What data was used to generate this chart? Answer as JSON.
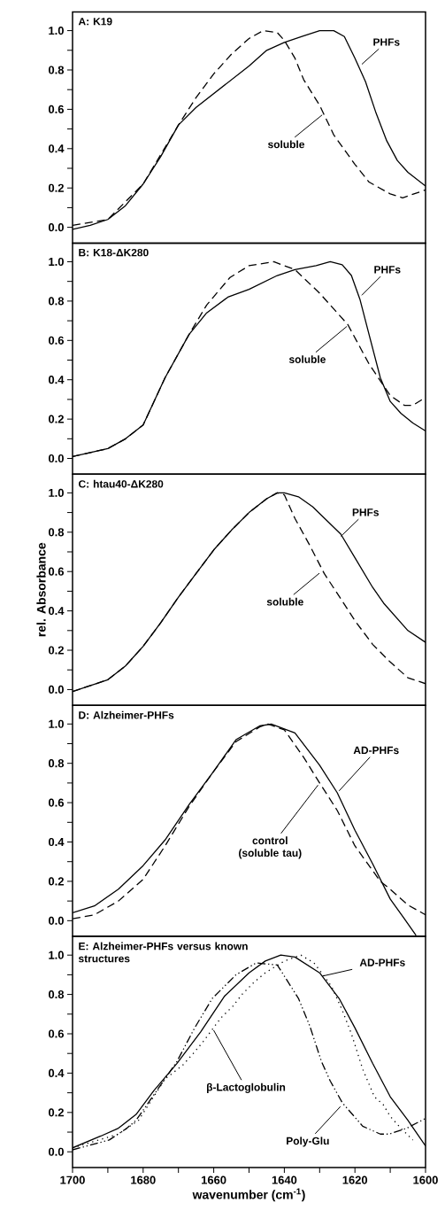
{
  "chart_data": [
    {
      "type": "line",
      "title": "A: K19",
      "xlim": [
        1700,
        1600
      ],
      "ylim": [
        -0.08,
        1.095
      ],
      "tick_labels": "y",
      "yticks": [
        {
          "value": 0,
          "label": "0.0"
        },
        {
          "value": 0.1,
          "label": null
        },
        0.2,
        {
          "value": 0.3,
          "label": null
        },
        0.4,
        {
          "value": 0.5,
          "label": null
        },
        0.6,
        {
          "value": 0.7,
          "label": null
        },
        0.8,
        {
          "value": 0.9,
          "label": null
        },
        {
          "value": 1,
          "label": "1.0"
        }
      ],
      "series": [
        {
          "color": "#000000",
          "line_style": "solid",
          "x": [
            1700,
            1695,
            1690,
            1685,
            1680,
            1675,
            1670,
            1665,
            1660,
            1655,
            1650,
            1645,
            1640,
            1635,
            1630,
            1626,
            1623,
            1620,
            1617,
            1614,
            1611,
            1608,
            1605,
            1600
          ],
          "values": [
            -0.01,
            0.01,
            0.04,
            0.11,
            0.22,
            0.36,
            0.52,
            0.61,
            0.68,
            0.75,
            0.82,
            0.9,
            0.94,
            0.97,
            1.0,
            1.0,
            0.97,
            0.86,
            0.74,
            0.58,
            0.44,
            0.34,
            0.28,
            0.21
          ]
        },
        {
          "color": "#000000",
          "line_style": "dashed",
          "x": [
            1700,
            1690,
            1680,
            1670,
            1665,
            1660,
            1655,
            1650,
            1646,
            1642,
            1640,
            1637,
            1634.5,
            1630,
            1626,
            1620,
            1616,
            1610,
            1606.5,
            1600
          ],
          "values": [
            0.01,
            0.04,
            0.22,
            0.52,
            0.66,
            0.78,
            0.88,
            0.96,
            1.0,
            0.99,
            0.95,
            0.86,
            0.75,
            0.62,
            0.47,
            0.32,
            0.23,
            0.17,
            0.15,
            0.19
          ]
        }
      ],
      "annotations": [
        {
          "text": "PHFs",
          "x": 1618.6,
          "y": 0.82
        },
        {
          "text": "soluble",
          "x": 1628.7,
          "y": 0.58
        }
      ]
    },
    {
      "type": "line",
      "title": "B: K18-ΔK280",
      "xlim": [
        1700,
        1600
      ],
      "ylim": [
        -0.08,
        1.095
      ],
      "tick_labels": "y",
      "yticks": [
        {
          "value": 0,
          "label": "0.0"
        },
        {
          "value": 0.1,
          "label": null
        },
        0.2,
        {
          "value": 0.3,
          "label": null
        },
        0.4,
        {
          "value": 0.5,
          "label": null
        },
        0.6,
        {
          "value": 0.7,
          "label": null
        },
        0.8,
        {
          "value": 0.9,
          "label": null
        },
        {
          "value": 1,
          "label": "1.0"
        }
      ],
      "series": [
        {
          "color": "#000000",
          "line_style": "solid",
          "x": [
            1700,
            1690,
            1685,
            1680,
            1673.8,
            1667,
            1662,
            1656,
            1650,
            1642,
            1637,
            1631,
            1627,
            1623.6,
            1621,
            1618.6,
            1616,
            1612.8,
            1610,
            1607,
            1603.6,
            1600
          ],
          "values": [
            0.01,
            0.05,
            0.1,
            0.17,
            0.41,
            0.63,
            0.74,
            0.82,
            0.86,
            0.93,
            0.96,
            0.98,
            1.0,
            0.985,
            0.93,
            0.81,
            0.63,
            0.41,
            0.29,
            0.23,
            0.18,
            0.14
          ]
        },
        {
          "color": "#000000",
          "line_style": "dashed",
          "x": [
            1700,
            1690,
            1685,
            1680,
            1673.8,
            1667,
            1662,
            1655.4,
            1650,
            1643,
            1637,
            1630,
            1622,
            1616,
            1610,
            1606,
            1603.6,
            1600
          ],
          "values": [
            0.01,
            0.05,
            0.1,
            0.17,
            0.41,
            0.63,
            0.78,
            0.92,
            0.98,
            1.0,
            0.96,
            0.84,
            0.68,
            0.48,
            0.32,
            0.27,
            0.27,
            0.31
          ]
        }
      ],
      "annotations": [
        {
          "text": "PHFs",
          "x": 1618.6,
          "y": 0.82
        },
        {
          "text": "soluble",
          "x": 1621.7,
          "y": 0.68
        }
      ]
    },
    {
      "type": "line",
      "title": "C: htau40-ΔK280",
      "ylabel": "rel. Absorbance",
      "xlim": [
        1700,
        1600
      ],
      "ylim": [
        -0.08,
        1.095
      ],
      "tick_labels": "y",
      "yticks": [
        {
          "value": 0,
          "label": "0.0"
        },
        {
          "value": 0.1,
          "label": null
        },
        0.2,
        {
          "value": 0.3,
          "label": null
        },
        0.4,
        {
          "value": 0.5,
          "label": null
        },
        0.6,
        {
          "value": 0.7,
          "label": null
        },
        0.8,
        {
          "value": 0.9,
          "label": null
        },
        {
          "value": 1,
          "label": "1.0"
        }
      ],
      "series": [
        {
          "color": "#000000",
          "line_style": "solid",
          "x": [
            1700,
            1695,
            1690,
            1685,
            1680,
            1675,
            1670,
            1665,
            1660,
            1655,
            1650,
            1645,
            1642,
            1640,
            1636,
            1632,
            1628,
            1624,
            1620,
            1615,
            1611.9,
            1605,
            1600
          ],
          "values": [
            -0.01,
            0.02,
            0.05,
            0.12,
            0.22,
            0.34,
            0.47,
            0.59,
            0.71,
            0.81,
            0.9,
            0.97,
            1.0,
            1.0,
            0.98,
            0.93,
            0.86,
            0.79,
            0.67,
            0.52,
            0.44,
            0.3,
            0.24
          ]
        },
        {
          "color": "#000000",
          "line_style": "dashed",
          "x": [
            1700,
            1695,
            1690,
            1685,
            1680,
            1675,
            1670,
            1665,
            1660,
            1655,
            1650,
            1645,
            1642,
            1640,
            1637,
            1633,
            1628.7,
            1623.6,
            1620,
            1615,
            1610,
            1605,
            1600
          ],
          "values": [
            -0.01,
            0.02,
            0.05,
            0.12,
            0.22,
            0.34,
            0.47,
            0.59,
            0.71,
            0.81,
            0.9,
            0.97,
            1.0,
            0.99,
            0.87,
            0.74,
            0.59,
            0.45,
            0.35,
            0.23,
            0.14,
            0.06,
            0.03
          ]
        }
      ],
      "annotations": [
        {
          "text": "PHFs",
          "x": 1624.5,
          "y": 0.77
        },
        {
          "text": "soluble",
          "x": 1629.5,
          "y": 0.6
        }
      ]
    },
    {
      "type": "line",
      "title": "D: Alzheimer-PHFs",
      "xlim": [
        1700,
        1600
      ],
      "ylim": [
        -0.08,
        1.095
      ],
      "tick_labels": "y",
      "yticks": [
        {
          "value": 0,
          "label": "0.0"
        },
        {
          "value": 0.1,
          "label": null
        },
        0.2,
        {
          "value": 0.3,
          "label": null
        },
        0.4,
        {
          "value": 0.5,
          "label": null
        },
        0.6,
        {
          "value": 0.7,
          "label": null
        },
        0.8,
        {
          "value": 0.9,
          "label": null
        },
        {
          "value": 1,
          "label": "1.0"
        }
      ],
      "series": [
        {
          "color": "#000000",
          "line_style": "solid",
          "x": [
            1700,
            1693.8,
            1687,
            1680,
            1673.8,
            1667,
            1660,
            1653.7,
            1647,
            1643.7,
            1637,
            1630,
            1625,
            1620,
            1615,
            1610,
            1606,
            1602.7
          ],
          "values": [
            0.04,
            0.075,
            0.16,
            0.28,
            0.41,
            0.59,
            0.76,
            0.92,
            0.99,
            1.0,
            0.955,
            0.79,
            0.65,
            0.46,
            0.29,
            0.11,
            0.01,
            -0.075
          ]
        },
        {
          "color": "#000000",
          "line_style": "dashed",
          "x": [
            1700,
            1693.8,
            1687,
            1680,
            1673.8,
            1667,
            1660,
            1653.7,
            1647,
            1644.6,
            1640,
            1634.5,
            1630,
            1625,
            1620,
            1612.8,
            1610,
            1605,
            1600
          ],
          "values": [
            0.01,
            0.03,
            0.1,
            0.21,
            0.38,
            0.58,
            0.76,
            0.91,
            0.985,
            1.0,
            0.97,
            0.83,
            0.7,
            0.56,
            0.38,
            0.2,
            0.16,
            0.08,
            0.03
          ]
        }
      ],
      "annotations": [
        {
          "text": "AD-PHFs",
          "x": 1625,
          "y": 0.65
        },
        {
          "text": "control (soluble tau)",
          "x": 1630,
          "y": 0.7
        }
      ]
    },
    {
      "type": "line",
      "title": "E: Alzheimer-PHFs versus known structures",
      "xlabel": "wavenumber (cm$^{-1}$)",
      "xlim": [
        1700,
        1600
      ],
      "ylim": [
        -0.08,
        1.095
      ],
      "xticks": [
        1700,
        {
          "value": 1690,
          "label": null
        },
        1680,
        {
          "value": 1670,
          "label": null
        },
        1660,
        {
          "value": 1650,
          "label": null
        },
        1640,
        {
          "value": 1630,
          "label": null
        },
        1620,
        {
          "value": 1610,
          "label": null
        },
        1600
      ],
      "yticks": [
        {
          "value": 0,
          "label": "0.0"
        },
        {
          "value": 0.1,
          "label": null
        },
        0.2,
        {
          "value": 0.3,
          "label": null
        },
        0.4,
        {
          "value": 0.5,
          "label": null
        },
        0.6,
        {
          "value": 0.7,
          "label": null
        },
        0.8,
        {
          "value": 0.9,
          "label": null
        },
        {
          "value": 1,
          "label": "1.0"
        }
      ],
      "series": [
        {
          "color": "#000000",
          "line_style": "solid",
          "x": [
            1700,
            1692,
            1687,
            1682,
            1677,
            1670.4,
            1663.7,
            1657,
            1650,
            1645.4,
            1641,
            1637,
            1630,
            1624.5,
            1620,
            1615,
            1610,
            1605,
            1600
          ],
          "values": [
            0.02,
            0.08,
            0.12,
            0.19,
            0.31,
            0.45,
            0.61,
            0.79,
            0.91,
            0.97,
            1.0,
            0.99,
            0.91,
            0.78,
            0.63,
            0.45,
            0.28,
            0.16,
            0.03
          ]
        },
        {
          "color": "#000000",
          "line_style": "dotted",
          "x": [
            1700,
            1687,
            1681.3,
            1673.8,
            1668.8,
            1665.8,
            1663,
            1658,
            1654.6,
            1652,
            1648.7,
            1645.4,
            1640,
            1635.3,
            1631.6,
            1629,
            1626.6,
            1623.6,
            1621,
            1617.8,
            1614.5,
            1612,
            1610,
            1607,
            1603.6
          ],
          "values": [
            0.02,
            0.09,
            0.16,
            0.37,
            0.44,
            0.5,
            0.56,
            0.68,
            0.74,
            0.8,
            0.86,
            0.91,
            0.97,
            1.0,
            0.96,
            0.9,
            0.84,
            0.72,
            0.6,
            0.42,
            0.28,
            0.24,
            0.18,
            0.12,
            0.06
          ]
        },
        {
          "color": "#000000",
          "line_style": "dashdotdotted",
          "x": [
            1700,
            1689.6,
            1684.6,
            1682,
            1675,
            1670.4,
            1665.4,
            1660.4,
            1653.7,
            1648,
            1642,
            1636,
            1632.8,
            1629.5,
            1627,
            1623.6,
            1617.8,
            1612.8,
            1610.3,
            1605.3,
            1600
          ],
          "values": [
            0.01,
            0.06,
            0.12,
            0.16,
            0.34,
            0.46,
            0.63,
            0.78,
            0.9,
            0.96,
            0.95,
            0.78,
            0.64,
            0.46,
            0.36,
            0.25,
            0.13,
            0.09,
            0.09,
            0.12,
            0.17
          ]
        }
      ],
      "annotations": [
        {
          "text": "AD-PHFs",
          "x": 1630,
          "y": 0.89
        },
        {
          "text": "β-Lactoglobulin",
          "x": 1660.4,
          "y": 0.63
        },
        {
          "text": "Poly-Glu",
          "x": 1623.6,
          "y": 0.24
        }
      ]
    }
  ]
}
